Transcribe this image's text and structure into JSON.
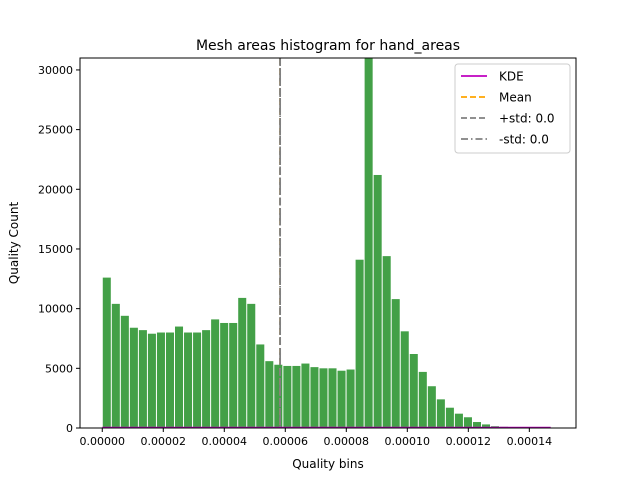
{
  "chart_data": {
    "type": "bar",
    "title": "Mesh areas histogram for hand_areas",
    "xlabel": "Quality bins",
    "ylabel": "Quality Count",
    "xlim": [
      -7.3e-06,
      0.0001553
    ],
    "ylim": [
      0,
      31000
    ],
    "bin_width": 2.96e-06,
    "x_ticks": [
      0,
      2e-05,
      4e-05,
      6e-05,
      8e-05,
      0.0001,
      0.00012,
      0.00014
    ],
    "x_tick_labels": [
      "0.00000",
      "0.00002",
      "0.00004",
      "0.00006",
      "0.00008",
      "0.00010",
      "0.00012",
      "0.00014"
    ],
    "y_ticks": [
      0,
      5000,
      10000,
      15000,
      20000,
      25000,
      30000
    ],
    "y_tick_labels": [
      "0",
      "5000",
      "10000",
      "15000",
      "20000",
      "25000",
      "30000"
    ],
    "bar_color": "#43a047",
    "bins_start": [
      0.0,
      2.96e-06,
      5.92e-06,
      8.88e-06,
      1.184e-05,
      1.48e-05,
      1.776e-05,
      2.072e-05,
      2.368e-05,
      2.664e-05,
      2.96e-05,
      3.256e-05,
      3.552e-05,
      3.848e-05,
      4.144e-05,
      4.44e-05,
      4.736e-05,
      5.032e-05,
      5.328e-05,
      5.624e-05,
      5.92e-05,
      6.216e-05,
      6.512e-05,
      6.808e-05,
      7.104e-05,
      7.4e-05,
      7.696e-05,
      7.992e-05,
      8.288e-05,
      8.584e-05,
      8.88e-05,
      9.176e-05,
      9.472e-05,
      9.768e-05,
      0.00010064,
      0.0001036,
      0.00010656,
      0.00010952,
      0.00011248,
      0.00011544,
      0.0001184,
      0.00012136,
      0.00012432,
      0.00012728,
      0.00013024,
      0.0001332,
      0.00013616,
      0.00013912,
      0.00014208
    ],
    "counts": [
      12600,
      10400,
      9400,
      8400,
      8200,
      7900,
      8000,
      8000,
      8500,
      8000,
      8000,
      8200,
      9100,
      8800,
      8800,
      10900,
      10400,
      7000,
      5600,
      5300,
      5200,
      5200,
      5400,
      5100,
      5000,
      5000,
      4800,
      4900,
      14100,
      31000,
      21200,
      14400,
      10800,
      8100,
      6200,
      4700,
      3500,
      2400,
      1700,
      1200,
      900,
      500,
      300,
      150,
      100,
      60,
      40,
      20,
      10
    ],
    "kde": {
      "color": "#bf00bf",
      "x": [
        0.0,
        0.000147
      ],
      "y": [
        0,
        0
      ]
    },
    "mean": {
      "color": "#ffa500",
      "x": 5.83e-05
    },
    "plus_std": {
      "color": "#808080",
      "x": 5.83e-05
    },
    "minus_std": {
      "color": "#808080",
      "x": 5.83e-05
    },
    "legend": {
      "position": "top-right",
      "entries": [
        {
          "label": "KDE",
          "style": "solid",
          "color": "#bf00bf"
        },
        {
          "label": "Mean",
          "style": "dashed",
          "color": "#ffa500"
        },
        {
          "label": "+std: 0.0",
          "style": "dashed",
          "color": "#808080"
        },
        {
          "label": "-std: 0.0",
          "style": "dashdot",
          "color": "#808080"
        }
      ]
    }
  }
}
